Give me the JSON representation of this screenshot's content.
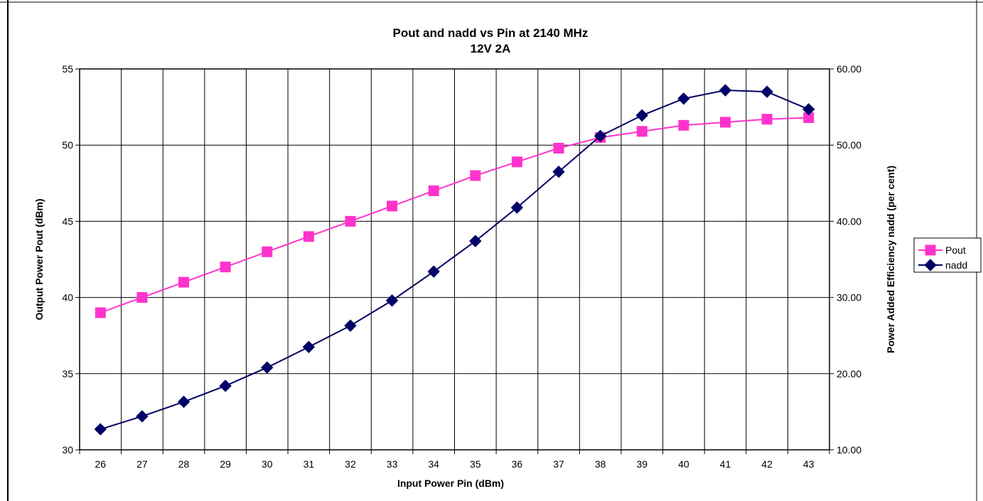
{
  "chart_data": {
    "type": "line",
    "title": "Pout and nadd vs Pin at 2140 MHz",
    "subtitle": "12V 2A",
    "xlabel": "Input Power Pin (dBm)",
    "ylabel_left": "Output Power Pout (dBm)",
    "ylabel_right": "Power Added Efficiency nadd (per cent)",
    "x": [
      26,
      27,
      28,
      29,
      30,
      31,
      32,
      33,
      34,
      35,
      36,
      37,
      38,
      39,
      40,
      41,
      42,
      43
    ],
    "x_tick_labels": [
      "26",
      "27",
      "28",
      "29",
      "30",
      "31",
      "32",
      "33",
      "34",
      "35",
      "36",
      "37",
      "38",
      "39",
      "40",
      "41",
      "42",
      "43"
    ],
    "ylim_left": [
      30,
      55
    ],
    "y_ticks_left": [
      "30",
      "35",
      "40",
      "45",
      "50",
      "55"
    ],
    "ylim_right": [
      10,
      60
    ],
    "y_ticks_right": [
      "10.00",
      "20.00",
      "30.00",
      "40.00",
      "50.00",
      "60.00"
    ],
    "grid": true,
    "legend_position": "right",
    "series": [
      {
        "name": "Pout",
        "axis": "left",
        "color": "#ff33cc",
        "marker": "square",
        "values": [
          39.0,
          40.0,
          41.0,
          42.0,
          43.0,
          44.0,
          45.0,
          46.0,
          47.0,
          48.0,
          48.9,
          49.8,
          50.5,
          50.9,
          51.3,
          51.5,
          51.7,
          51.8
        ]
      },
      {
        "name": "nadd",
        "axis": "right",
        "color": "#000066",
        "marker": "diamond",
        "values": [
          12.7,
          14.4,
          16.3,
          18.4,
          20.8,
          23.5,
          26.3,
          29.6,
          33.4,
          37.4,
          41.8,
          46.5,
          51.2,
          53.9,
          56.1,
          57.2,
          57.0,
          54.7
        ]
      }
    ]
  }
}
